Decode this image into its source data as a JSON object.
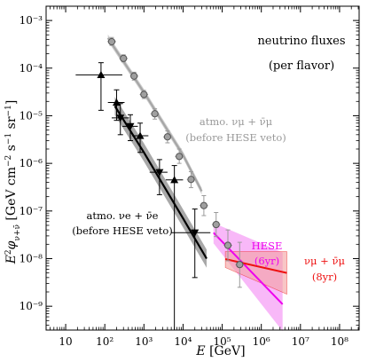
{
  "chart_data": {
    "type": "scatter",
    "xlabel": "E [GeV]",
    "ylabel": "E²φν+ν̄ [GeV cm⁻² s⁻¹ sr⁻¹]",
    "x_log_range": [
      0.5,
      8.5
    ],
    "y_log_range": [
      -9.5,
      -2.7
    ],
    "x_scale": "log",
    "y_scale": "log",
    "x_ticks": [
      {
        "exp": 1,
        "label": "10"
      },
      {
        "exp": 2,
        "label": "10²"
      },
      {
        "exp": 3,
        "label": "10³"
      },
      {
        "exp": 4,
        "label": "10⁴"
      },
      {
        "exp": 5,
        "label": "10⁵"
      },
      {
        "exp": 6,
        "label": "10⁶"
      },
      {
        "exp": 7,
        "label": "10⁷"
      },
      {
        "exp": 8,
        "label": "10⁸"
      }
    ],
    "y_ticks": [
      {
        "exp": -3,
        "label": "10⁻³"
      },
      {
        "exp": -4,
        "label": "10⁻⁴"
      },
      {
        "exp": -5,
        "label": "10⁻⁵"
      },
      {
        "exp": -6,
        "label": "10⁻⁶"
      },
      {
        "exp": -7,
        "label": "10⁻⁷"
      },
      {
        "exp": -8,
        "label": "10⁻⁸"
      },
      {
        "exp": -9,
        "label": "10⁻⁹"
      }
    ],
    "annotations": {
      "title_line1": "neutrino fluxes",
      "title_line2": "(per flavor)",
      "atmo_mu_line1": "atmo. νμ + ν̄μ",
      "atmo_mu_line2": "(before HESE veto)",
      "atmo_e_line1": "atmo. νe + ν̄e",
      "atmo_e_line2": "(before HESE veto)",
      "hese_line1": "HESE",
      "hese_line2": "(6yr)",
      "numu_line1": "νμ + ν̄μ",
      "numu_line2": "(8yr)"
    },
    "colors": {
      "atmo_mu": "#a6a6a6",
      "atmo_mu_band": "#d0d0d0",
      "atmo_e": "#000000",
      "atmo_e_band": "#a8a8a8",
      "hese": "#ee00ee",
      "hese_band": "#f5a0f5",
      "numu": "#ee1111",
      "numu_band": "#f4a0a0",
      "point_fill": "#a0a0a0"
    },
    "series": [
      {
        "name": "atmo. νμ + ν̄μ",
        "points": [
          {
            "x": 150,
            "y": 0.00036,
            "xerr": [
              115,
              195
            ],
            "yerr": [
              0.0003,
              0.00044
            ]
          },
          {
            "x": 300,
            "y": 0.00016,
            "xerr": [
              235,
              385
            ],
            "yerr": [
              0.000135,
              0.00019
            ]
          },
          {
            "x": 560,
            "y": 6.8e-05,
            "xerr": [
              440,
              720
            ],
            "yerr": [
              5.6e-05,
              8.2e-05
            ]
          },
          {
            "x": 1000,
            "y": 2.8e-05,
            "xerr": [
              780,
              1280
            ],
            "yerr": [
              2.3e-05,
              3.4e-05
            ]
          },
          {
            "x": 1900,
            "y": 1.1e-05,
            "xerr": [
              1480,
              2430
            ],
            "yerr": [
              8.5e-06,
              1.4e-05
            ]
          },
          {
            "x": 4000,
            "y": 3.6e-06,
            "xerr": [
              3100,
              5100
            ],
            "yerr": [
              2.7e-06,
              4.8e-06
            ]
          },
          {
            "x": 8000,
            "y": 1.4e-06,
            "xerr": [
              6200,
              10200
            ],
            "yerr": [
              1e-06,
              2e-06
            ]
          },
          {
            "x": 16000,
            "y": 4.6e-07,
            "xerr": [
              12500,
              20500
            ],
            "yerr": [
              3.1e-07,
              6.7e-07
            ]
          },
          {
            "x": 34000,
            "y": 1.3e-07,
            "xerr": [
              26500,
              43500
            ],
            "yerr": [
              8e-08,
              2.1e-07
            ]
          },
          {
            "x": 70000,
            "y": 5.2e-08,
            "xerr": [
              54500,
              90000
            ],
            "yerr": [
              2.9e-08,
              9.3e-08
            ]
          },
          {
            "x": 140000,
            "y": 1.9e-08,
            "xerr": [
              109000,
              180000
            ],
            "yerr": [
              9e-09,
              4e-08
            ]
          },
          {
            "x": 280000,
            "y": 7.5e-09,
            "xerr": [
              218000,
              360000
            ],
            "yerr": [
              2.5e-09,
              2.2e-08
            ]
          }
        ],
        "model": [
          [
            120,
            0.00043
          ],
          [
            1000,
            3.1e-05
          ],
          [
            10000,
            1.5e-06
          ],
          [
            30000,
            2.6e-07
          ]
        ]
      },
      {
        "name": "atmo. νe + ν̄e",
        "points": [
          {
            "x": 80,
            "y": 7.2e-05,
            "xerr": [
              18,
              280
            ],
            "yerr": [
              1.3e-05,
              0.00013
            ],
            "marker": "up"
          },
          {
            "x": 200,
            "y": 1.9e-05,
            "xerr": [
              120,
              320
            ],
            "yerr": [
              8e-06,
              3.5e-05
            ],
            "marker": "up"
          },
          {
            "x": 250,
            "y": 9e-06,
            "xerr": [
              150,
              420
            ],
            "yerr": [
              4e-06,
              1.8e-05
            ],
            "marker": "down"
          },
          {
            "x": 450,
            "y": 6e-06,
            "xerr": [
              280,
              700
            ],
            "yerr": [
              3e-06,
              1.05e-05
            ],
            "marker": "down"
          },
          {
            "x": 800,
            "y": 3.8e-06,
            "xerr": [
              500,
              1300
            ],
            "yerr": [
              1.7e-06,
              7e-06
            ],
            "marker": "up"
          },
          {
            "x": 2500,
            "y": 6.5e-07,
            "xerr": [
              1400,
              4000
            ],
            "yerr": [
              2.2e-07,
              1.2e-06
            ],
            "marker": "down"
          },
          {
            "x": 6000,
            "y": 4.5e-07,
            "xerr": [
              3600,
              10000
            ],
            "yerr": [
              3e-10,
              9e-07
            ],
            "marker": "up"
          },
          {
            "x": 20000,
            "y": 3.5e-08,
            "xerr": [
              5000,
              50000
            ],
            "yerr": [
              4e-09,
              1.1e-07
            ],
            "marker": "down"
          }
        ],
        "model": [
          [
            180,
            1.6e-05
          ],
          [
            1000,
            1.7e-06
          ],
          [
            10000,
            7e-08
          ],
          [
            40000,
            1e-08
          ]
        ]
      },
      {
        "name": "HESE (6yr)",
        "model": [
          [
            60000,
            3.5e-08
          ],
          [
            3500000,
            1.1e-09
          ]
        ],
        "band_upper": [
          [
            60000,
            5.6e-08
          ],
          [
            3500000,
            1.35e-08
          ]
        ],
        "band_lower": [
          [
            60000,
            2.1e-08
          ],
          [
            3500000,
            3e-10
          ]
        ]
      },
      {
        "name": "νμ + ν̄μ (8yr)",
        "model": [
          [
            120000,
            9.8e-09
          ],
          [
            4500000,
            5e-09
          ]
        ],
        "band_upper": [
          [
            120000,
            1.4e-08
          ],
          [
            4500000,
            1.4e-08
          ]
        ],
        "band_lower": [
          [
            120000,
            6.5e-09
          ],
          [
            4500000,
            1.8e-09
          ]
        ]
      }
    ]
  }
}
